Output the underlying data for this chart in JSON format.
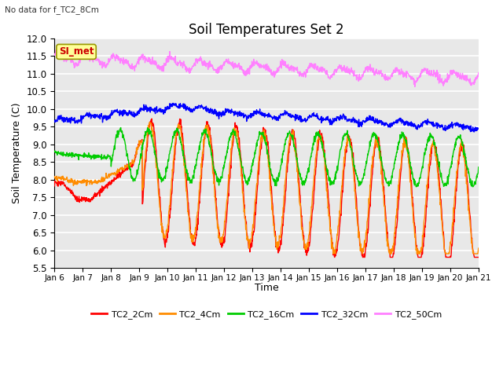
{
  "title": "Soil Temperatures Set 2",
  "subtitle": "No data for f_TC2_8Cm",
  "xlabel": "Time",
  "ylabel": "Soil Temperature (C)",
  "ylim": [
    5.5,
    12.0
  ],
  "yticks": [
    5.5,
    6.0,
    6.5,
    7.0,
    7.5,
    8.0,
    8.5,
    9.0,
    9.5,
    10.0,
    10.5,
    11.0,
    11.5,
    12.0
  ],
  "x_labels": [
    "Jan 6",
    "Jan 7",
    "Jan 8",
    "Jan 9",
    "Jan 10",
    "Jan 11",
    "Jan 12",
    "Jan 13",
    "Jan 14",
    "Jan 15",
    "Jan 16",
    "Jan 17",
    "Jan 18",
    "Jan 19",
    "Jan 20",
    "Jan 21"
  ],
  "colors": {
    "TC2_2Cm": "#ff0000",
    "TC2_4Cm": "#ff8c00",
    "TC2_16Cm": "#00cc00",
    "TC2_32Cm": "#0000ff",
    "TC2_50Cm": "#ff80ff"
  },
  "plot_bg_color": "#e8e8e8",
  "grid_color": "#ffffff",
  "annotation_text": "SI_met",
  "annotation_color": "#cc0000",
  "annotation_bg": "#ffff99",
  "annotation_border": "#999900",
  "fig_width": 6.4,
  "fig_height": 4.8,
  "dpi": 100
}
